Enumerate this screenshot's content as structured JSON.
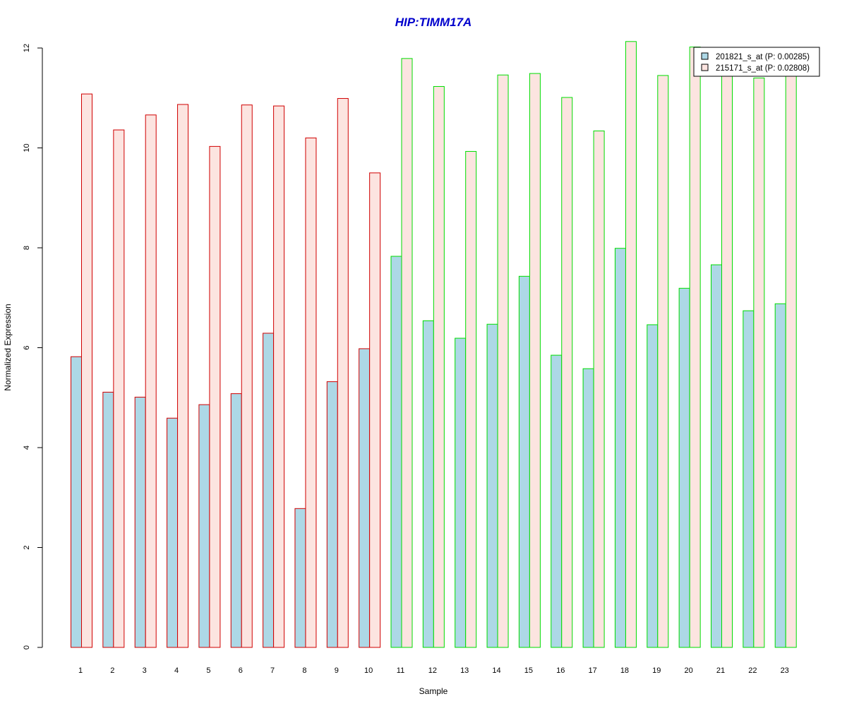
{
  "chart_data": {
    "type": "bar",
    "title": "HIP:TIMM17A",
    "xlabel": "Sample",
    "ylabel": "Normalized Expression",
    "ylim": [
      0,
      12
    ],
    "yticks": [
      0,
      2,
      4,
      6,
      8,
      10,
      12
    ],
    "categories": [
      "1",
      "2",
      "3",
      "4",
      "5",
      "6",
      "7",
      "8",
      "9",
      "10",
      "11",
      "12",
      "13",
      "14",
      "15",
      "16",
      "17",
      "18",
      "19",
      "20",
      "21",
      "22",
      "23"
    ],
    "series": [
      {
        "name": "201821_s_at (P: 0.00285)",
        "fill": "#add8e6",
        "values": [
          5.82,
          5.11,
          5.01,
          4.59,
          4.86,
          5.08,
          6.29,
          2.78,
          5.32,
          5.98,
          7.83,
          6.54,
          6.19,
          6.47,
          7.43,
          5.85,
          5.58,
          7.99,
          6.46,
          7.19,
          7.66,
          6.74,
          6.88
        ]
      },
      {
        "name": "215171_s_at (P: 0.02808)",
        "fill": "#fce4e0",
        "values": [
          11.08,
          10.36,
          10.66,
          10.87,
          10.03,
          10.86,
          10.84,
          10.2,
          10.99,
          9.5,
          11.79,
          11.23,
          9.93,
          11.46,
          11.49,
          11.01,
          10.34,
          12.13,
          11.45,
          12.02,
          11.5,
          11.4,
          11.5
        ]
      }
    ],
    "group_borders": [
      "#d00000",
      "#d00000",
      "#d00000",
      "#d00000",
      "#d00000",
      "#d00000",
      "#d00000",
      "#d00000",
      "#d00000",
      "#d00000",
      "#00dd00",
      "#00dd00",
      "#00dd00",
      "#00dd00",
      "#00dd00",
      "#00dd00",
      "#00dd00",
      "#00dd00",
      "#00dd00",
      "#00dd00",
      "#00dd00",
      "#00dd00",
      "#00dd00"
    ],
    "title_color": "#0000cc",
    "legend_position": "top-right",
    "grid": false
  }
}
